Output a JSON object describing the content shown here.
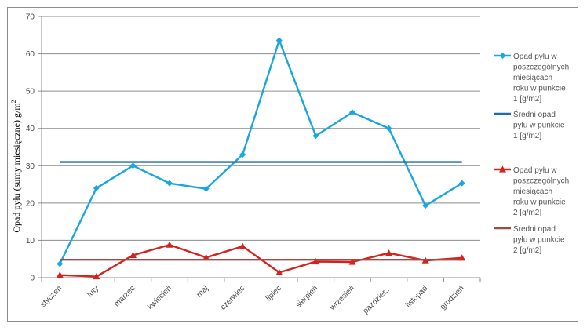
{
  "chart_data": {
    "type": "line",
    "title": "",
    "xlabel": "",
    "ylabel": "Opad pyłu  (sumy miesięczne) g/m",
    "ylabel_superscript": "2",
    "ylim": [
      0,
      70
    ],
    "yticks": [
      0,
      10,
      20,
      30,
      40,
      50,
      60,
      70
    ],
    "grid": "horizontal",
    "legend_position": "right",
    "categories": [
      "styczeń",
      "luty",
      "marzec",
      "kwiecień",
      "maj",
      "czerwiec",
      "lipiec",
      "sierpień",
      "wrzesień",
      "październik",
      "listopad",
      "grudzień"
    ],
    "category_labels": [
      "styczeń",
      "luty",
      "marzec",
      "kwiecień",
      "maj",
      "czerwiec",
      "lipiec",
      "sierpień",
      "wrzesień",
      "paździer...",
      "listopad",
      "grudzień"
    ],
    "series": [
      {
        "name": "Opad pyłu w poszczególnych miesiącach roku w punkcie 1 [g/m2]",
        "legend_lines": [
          "Opad pyłu w",
          "poszczególnych",
          "miesiącach",
          "roku w punkcie",
          "1 [g/m2]"
        ],
        "color": "#1AA7DE",
        "marker": "diamond",
        "values": [
          3.7,
          24.0,
          30.0,
          25.3,
          23.8,
          33.0,
          63.6,
          38.0,
          44.3,
          40.0,
          19.3,
          25.3
        ]
      },
      {
        "name": "Średni opad pyłu w punkcie 1 [g/m2]",
        "legend_lines": [
          "Średni opad",
          "pyłu w punkcie",
          "1 [g/m2]"
        ],
        "color": "#1E6EAE",
        "marker": "none",
        "values": [
          31.0,
          31.0,
          31.0,
          31.0,
          31.0,
          31.0,
          31.0,
          31.0,
          31.0,
          31.0,
          31.0,
          31.0
        ]
      },
      {
        "name": "Opad pyłu w poszczególnych miesiącach roku w punkcie 2 [g/m2]",
        "legend_lines": [
          "Opad pyłu w",
          "poszczególnych",
          "miesiącach",
          "roku w punkcie",
          "2 [g/m2]"
        ],
        "color": "#D6221E",
        "marker": "triangle",
        "values": [
          0.7,
          0.3,
          6.0,
          8.8,
          5.4,
          8.4,
          1.4,
          4.3,
          4.2,
          6.6,
          4.6,
          5.3
        ]
      },
      {
        "name": "Średni opad pyłu w punkcie 2 [g/m2]",
        "legend_lines": [
          "Średni opad",
          "pyłu w punkcie",
          "2 [g/m2]"
        ],
        "color": "#A64740",
        "marker": "none",
        "values": [
          4.8,
          4.8,
          4.8,
          4.8,
          4.8,
          4.8,
          4.8,
          4.8,
          4.8,
          4.8,
          4.8,
          4.8
        ]
      }
    ]
  }
}
